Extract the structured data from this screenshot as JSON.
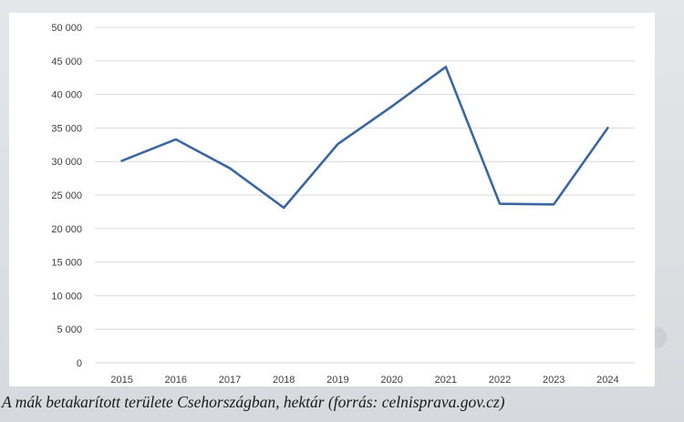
{
  "caption": "A mák betakarított területe Csehországban, hektár (forrás: celnisprava.gov.cz)",
  "colors": {
    "line": "#3a67a1",
    "grid": "#d9d9d9",
    "panel": "#ffffff"
  },
  "chart_data": {
    "type": "line",
    "title": "",
    "xlabel": "",
    "ylabel": "",
    "categories": [
      "2015",
      "2016",
      "2017",
      "2018",
      "2019",
      "2020",
      "2021",
      "2022",
      "2023",
      "2024"
    ],
    "series": [
      {
        "values": [
          30100,
          33300,
          29000,
          23100,
          32600,
          38200,
          44100,
          23700,
          23600,
          35000
        ]
      }
    ],
    "ylim": [
      0,
      50000
    ],
    "yticks": [
      "0",
      "5 000",
      "10 000",
      "15 000",
      "20 000",
      "25 000",
      "30 000",
      "35 000",
      "40 000",
      "45 000",
      "50 000"
    ],
    "grid": true,
    "legend": "none"
  }
}
